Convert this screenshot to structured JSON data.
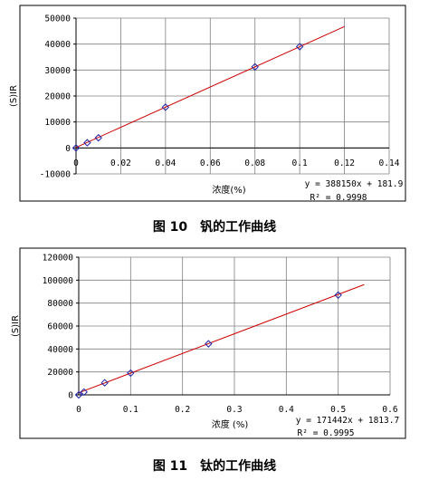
{
  "chart_data": [
    {
      "type": "scatter",
      "caption": "图 10　钒的工作曲线",
      "xlabel": "浓度(%)",
      "ylabel": "(S)IR",
      "xlim": [
        0,
        0.14
      ],
      "ylim": [
        -10000,
        50000
      ],
      "x_ticks": [
        0,
        0.02,
        0.04,
        0.06,
        0.08,
        0.1,
        0.12,
        0.14
      ],
      "x_tick_labels": [
        "0",
        "0.02",
        "0.04",
        "0.06",
        "0.08",
        "0.1",
        "0.12",
        "0.14"
      ],
      "y_ticks": [
        -10000,
        0,
        10000,
        20000,
        30000,
        40000,
        50000
      ],
      "y_tick_labels": [
        "-10000",
        "0",
        "10000",
        "20000",
        "30000",
        "40000",
        "50000"
      ],
      "grid": true,
      "points": {
        "x": [
          0,
          0.005,
          0.01,
          0.04,
          0.08,
          0.1
        ],
        "y": [
          0,
          2000,
          3900,
          15700,
          31200,
          39000
        ]
      },
      "trendline": {
        "slope": 388150,
        "intercept": 181.9,
        "x_range": [
          0,
          0.12
        ]
      },
      "equation": "y = 388150x + 181.9",
      "r2": "R² = 0.9998",
      "colors": {
        "marker": "#1f1fa6",
        "trendline": "#cc0000",
        "grid": "#808080"
      }
    },
    {
      "type": "scatter",
      "caption": "图 11　钛的工作曲线",
      "xlabel": "浓度 (%)",
      "ylabel": "(S)IR",
      "xlim": [
        0,
        0.6
      ],
      "ylim": [
        0,
        120000
      ],
      "x_ticks": [
        0,
        0.1,
        0.2,
        0.3,
        0.4,
        0.5,
        0.6
      ],
      "x_tick_labels": [
        "0",
        "0.1",
        "0.2",
        "0.3",
        "0.4",
        "0.5",
        "0.6"
      ],
      "y_ticks": [
        0,
        20000,
        40000,
        60000,
        80000,
        100000,
        120000
      ],
      "y_tick_labels": [
        "0",
        "20000",
        "40000",
        "60000",
        "80000",
        "100000",
        "120000"
      ],
      "grid": true,
      "points": {
        "x": [
          0,
          0.01,
          0.05,
          0.1,
          0.25,
          0.5
        ],
        "y": [
          0,
          2500,
          10500,
          19000,
          44500,
          87000
        ]
      },
      "trendline": {
        "slope": 171442,
        "intercept": 1813.7,
        "x_range": [
          0,
          0.55
        ]
      },
      "equation": "y = 171442x + 1813.7",
      "r2": "R² = 0.9995",
      "colors": {
        "marker": "#1f1fa6",
        "trendline": "#cc0000",
        "grid": "#808080"
      }
    }
  ]
}
